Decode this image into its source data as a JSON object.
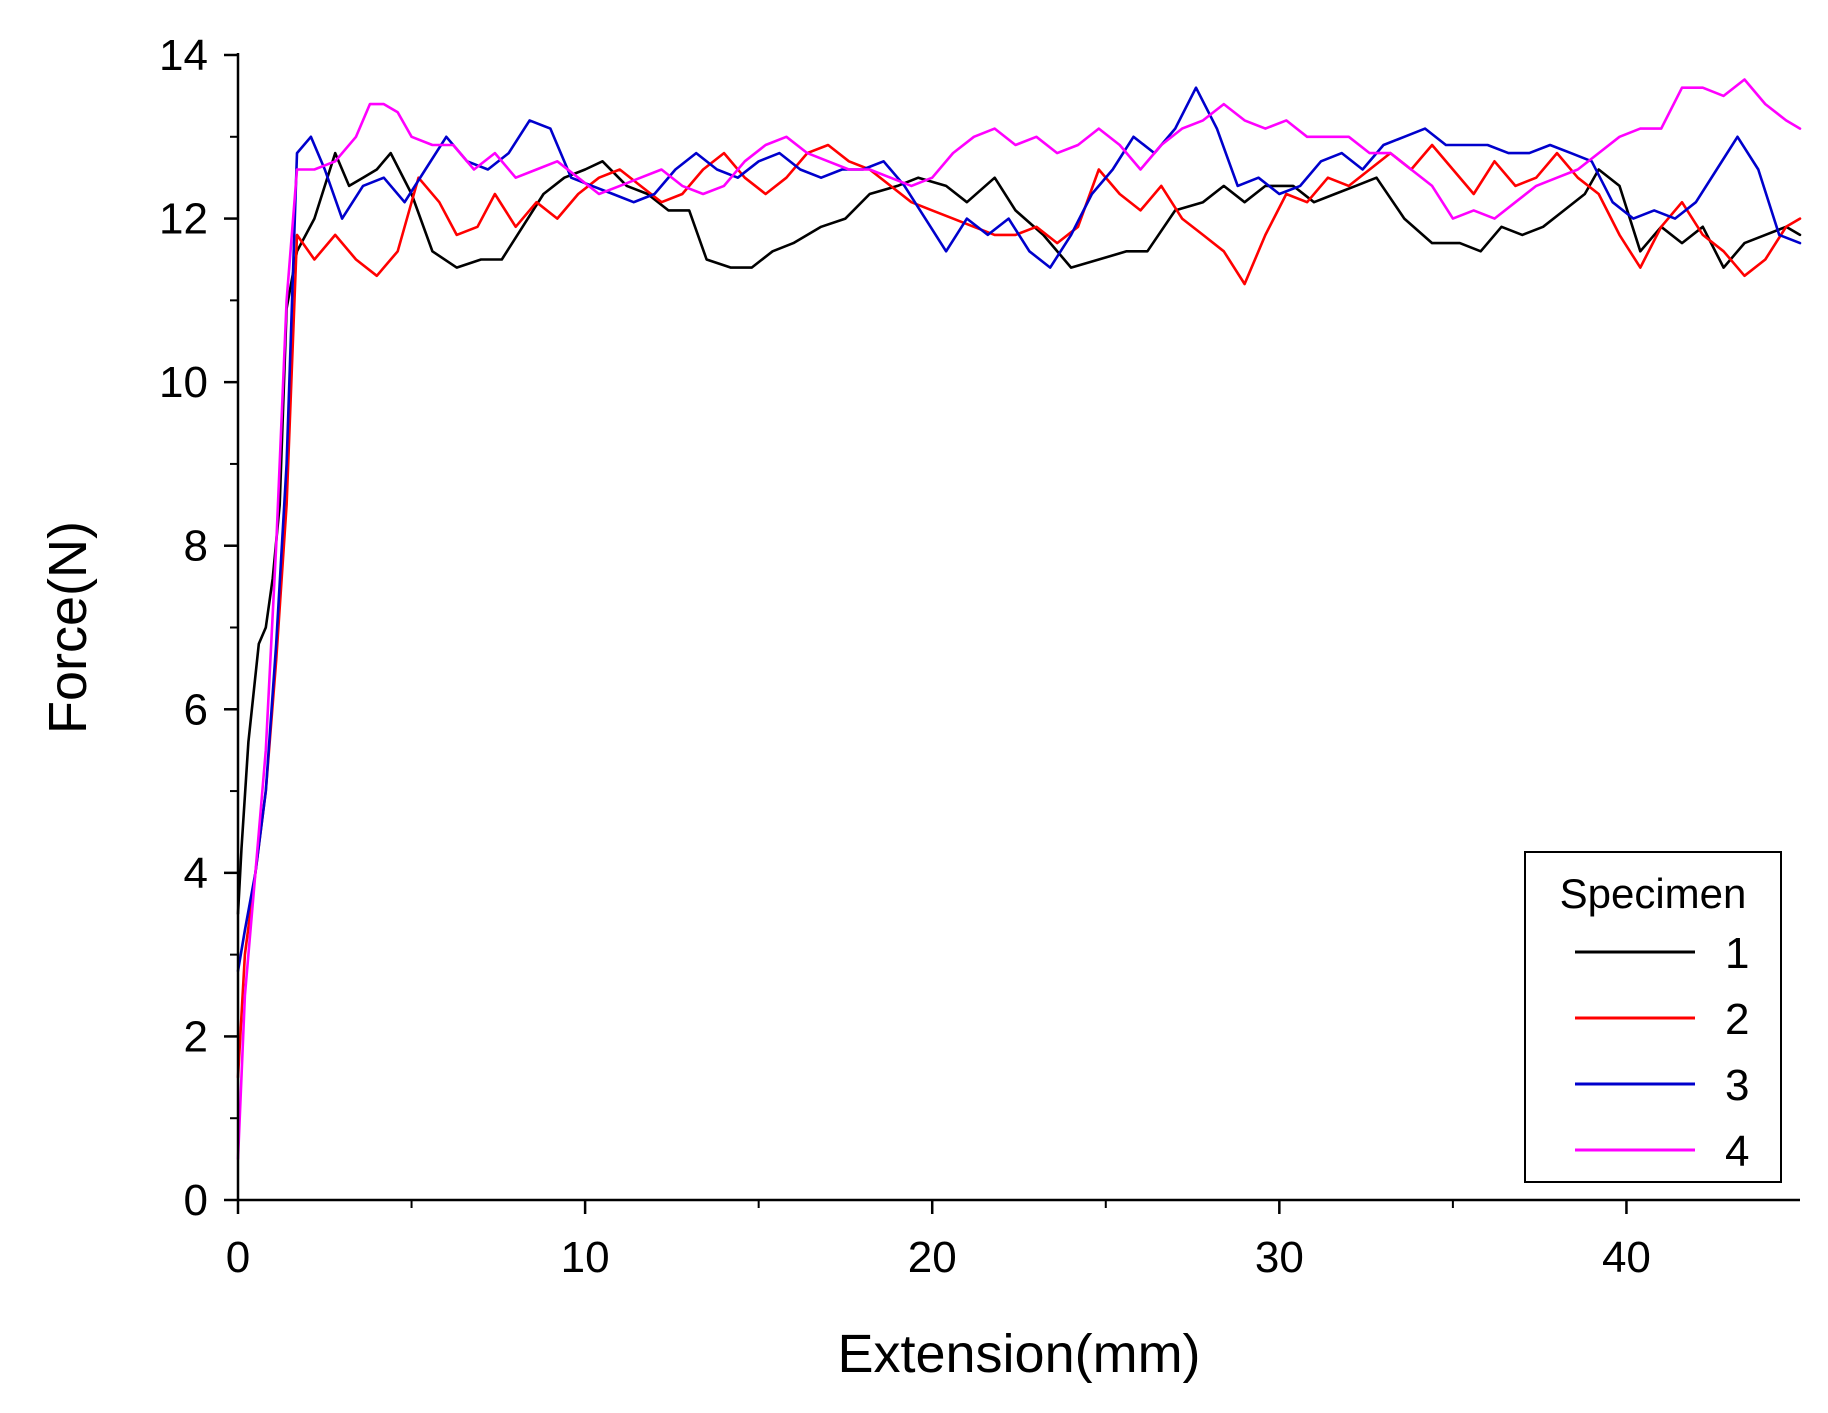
{
  "chart_data": {
    "type": "line",
    "title": "",
    "xlabel": "Extension(mm)",
    "ylabel": "Force(N)",
    "xlim": [
      0,
      45
    ],
    "ylim": [
      0,
      14
    ],
    "xticks": [
      0,
      10,
      20,
      30,
      40
    ],
    "yticks": [
      0,
      2,
      4,
      6,
      8,
      10,
      12,
      14
    ],
    "xminor_ticks": [
      5,
      15,
      25,
      35
    ],
    "grid": false,
    "legend": {
      "title": "Specimen",
      "position": "lower-right"
    },
    "series": [
      {
        "name": "1",
        "color": "#000000",
        "x": [
          0,
          0.1,
          0.3,
          0.6,
          0.8,
          1.0,
          1.2,
          1.4,
          1.7,
          2.2,
          2.8,
          3.2,
          3.6,
          4.0,
          4.4,
          5.0,
          5.6,
          6.3,
          7.0,
          7.6,
          8.2,
          8.8,
          9.4,
          10.0,
          10.5,
          11.2,
          11.8,
          12.4,
          13.0,
          13.5,
          14.2,
          14.8,
          15.4,
          16.0,
          16.8,
          17.5,
          18.2,
          19.0,
          19.6,
          20.4,
          21.0,
          21.8,
          22.4,
          23.2,
          24.0,
          24.8,
          25.6,
          26.2,
          27.0,
          27.8,
          28.4,
          29.0,
          29.6,
          30.4,
          31.0,
          31.6,
          32.2,
          32.8,
          33.6,
          34.4,
          35.2,
          35.8,
          36.4,
          37.0,
          37.6,
          38.2,
          38.8,
          39.2,
          39.8,
          40.4,
          41.0,
          41.6,
          42.2,
          42.8,
          43.4,
          44.0,
          44.6,
          45.0
        ],
        "values": [
          3.5,
          4.3,
          5.6,
          6.8,
          7.0,
          7.6,
          8.5,
          10.9,
          11.6,
          12.0,
          12.8,
          12.4,
          12.5,
          12.6,
          12.8,
          12.3,
          11.6,
          11.4,
          11.5,
          11.5,
          11.9,
          12.3,
          12.5,
          12.6,
          12.7,
          12.4,
          12.3,
          12.1,
          12.1,
          11.5,
          11.4,
          11.4,
          11.6,
          11.7,
          11.9,
          12.0,
          12.3,
          12.4,
          12.5,
          12.4,
          12.2,
          12.5,
          12.1,
          11.8,
          11.4,
          11.5,
          11.6,
          11.6,
          12.1,
          12.2,
          12.4,
          12.2,
          12.4,
          12.4,
          12.2,
          12.3,
          12.4,
          12.5,
          12.0,
          11.7,
          11.7,
          11.6,
          11.9,
          11.8,
          11.9,
          12.1,
          12.3,
          12.6,
          12.4,
          11.6,
          11.9,
          11.7,
          11.9,
          11.4,
          11.7,
          11.8,
          11.9,
          11.8
        ]
      },
      {
        "name": "2",
        "color": "#ff0000",
        "x": [
          0,
          0.2,
          0.5,
          0.8,
          1.1,
          1.4,
          1.7,
          2.2,
          2.8,
          3.4,
          4.0,
          4.6,
          5.2,
          5.8,
          6.3,
          6.9,
          7.4,
          8.0,
          8.6,
          9.2,
          9.8,
          10.4,
          11.0,
          11.6,
          12.2,
          12.8,
          13.4,
          14.0,
          14.6,
          15.2,
          15.8,
          16.4,
          17.0,
          17.6,
          18.2,
          18.8,
          19.4,
          20.0,
          20.6,
          21.2,
          21.8,
          22.4,
          23.0,
          23.6,
          24.2,
          24.8,
          25.4,
          26.0,
          26.6,
          27.2,
          27.8,
          28.4,
          29.0,
          29.6,
          30.2,
          30.8,
          31.4,
          32.0,
          32.6,
          33.2,
          33.8,
          34.4,
          35.0,
          35.6,
          36.2,
          36.8,
          37.4,
          38.0,
          38.6,
          39.2,
          39.8,
          40.4,
          41.0,
          41.6,
          42.2,
          42.8,
          43.4,
          44.0,
          44.6,
          45.0
        ],
        "values": [
          1.5,
          3.0,
          4.0,
          5.0,
          6.6,
          8.5,
          11.8,
          11.5,
          11.8,
          11.5,
          11.3,
          11.6,
          12.5,
          12.2,
          11.8,
          11.9,
          12.3,
          11.9,
          12.2,
          12.0,
          12.3,
          12.5,
          12.6,
          12.4,
          12.2,
          12.3,
          12.6,
          12.8,
          12.5,
          12.3,
          12.5,
          12.8,
          12.9,
          12.7,
          12.6,
          12.4,
          12.2,
          12.1,
          12.0,
          11.9,
          11.8,
          11.8,
          11.9,
          11.7,
          11.9,
          12.6,
          12.3,
          12.1,
          12.4,
          12.0,
          11.8,
          11.6,
          11.2,
          11.8,
          12.3,
          12.2,
          12.5,
          12.4,
          12.6,
          12.8,
          12.6,
          12.9,
          12.6,
          12.3,
          12.7,
          12.4,
          12.5,
          12.8,
          12.5,
          12.3,
          11.8,
          11.4,
          11.9,
          12.2,
          11.8,
          11.6,
          11.3,
          11.5,
          11.9,
          12.0
        ]
      },
      {
        "name": "3",
        "color": "#0000cc",
        "x": [
          0,
          0.2,
          0.5,
          0.8,
          1.1,
          1.4,
          1.7,
          2.1,
          2.5,
          3.0,
          3.6,
          4.2,
          4.8,
          5.4,
          6.0,
          6.6,
          7.2,
          7.8,
          8.4,
          9.0,
          9.6,
          10.2,
          10.8,
          11.4,
          12.0,
          12.6,
          13.2,
          13.8,
          14.4,
          15.0,
          15.6,
          16.2,
          16.8,
          17.4,
          18.0,
          18.6,
          19.2,
          19.8,
          20.4,
          21.0,
          21.6,
          22.2,
          22.8,
          23.4,
          24.0,
          24.6,
          25.2,
          25.8,
          26.4,
          27.0,
          27.6,
          28.2,
          28.8,
          29.4,
          30.0,
          30.6,
          31.2,
          31.8,
          32.4,
          33.0,
          33.6,
          34.2,
          34.8,
          35.4,
          36.0,
          36.6,
          37.2,
          37.8,
          38.4,
          39.0,
          39.6,
          40.2,
          40.8,
          41.4,
          42.0,
          42.6,
          43.2,
          43.8,
          44.4,
          45.0
        ],
        "values": [
          2.8,
          3.3,
          4.0,
          5.0,
          6.8,
          9.0,
          12.8,
          13.0,
          12.6,
          12.0,
          12.4,
          12.5,
          12.2,
          12.6,
          13.0,
          12.7,
          12.6,
          12.8,
          13.2,
          13.1,
          12.5,
          12.4,
          12.3,
          12.2,
          12.3,
          12.6,
          12.8,
          12.6,
          12.5,
          12.7,
          12.8,
          12.6,
          12.5,
          12.6,
          12.6,
          12.7,
          12.4,
          12.0,
          11.6,
          12.0,
          11.8,
          12.0,
          11.6,
          11.4,
          11.8,
          12.3,
          12.6,
          13.0,
          12.8,
          13.1,
          13.6,
          13.1,
          12.4,
          12.5,
          12.3,
          12.4,
          12.7,
          12.8,
          12.6,
          12.9,
          13.0,
          13.1,
          12.9,
          12.9,
          12.9,
          12.8,
          12.8,
          12.9,
          12.8,
          12.7,
          12.2,
          12.0,
          12.1,
          12.0,
          12.2,
          12.6,
          13.0,
          12.6,
          11.8,
          11.7
        ]
      },
      {
        "name": "4",
        "color": "#ff00ff",
        "x": [
          0,
          0.2,
          0.5,
          0.8,
          1.1,
          1.4,
          1.7,
          2.2,
          2.8,
          3.4,
          3.8,
          4.2,
          4.6,
          5.0,
          5.6,
          6.2,
          6.8,
          7.4,
          8.0,
          8.6,
          9.2,
          9.8,
          10.4,
          11.0,
          11.6,
          12.2,
          12.8,
          13.4,
          14.0,
          14.6,
          15.2,
          15.8,
          16.4,
          17.0,
          17.6,
          18.2,
          18.8,
          19.4,
          20.0,
          20.6,
          21.2,
          21.8,
          22.4,
          23.0,
          23.6,
          24.2,
          24.8,
          25.4,
          26.0,
          26.6,
          27.2,
          27.8,
          28.4,
          29.0,
          29.6,
          30.2,
          30.8,
          31.4,
          32.0,
          32.6,
          33.2,
          33.8,
          34.4,
          35.0,
          35.6,
          36.2,
          36.8,
          37.4,
          38.0,
          38.6,
          39.2,
          39.8,
          40.4,
          41.0,
          41.6,
          42.2,
          42.8,
          43.4,
          44.0,
          44.6,
          45.0
        ],
        "values": [
          0.5,
          2.5,
          4.0,
          5.5,
          8.0,
          11.0,
          12.6,
          12.6,
          12.7,
          13.0,
          13.4,
          13.4,
          13.3,
          13.0,
          12.9,
          12.9,
          12.6,
          12.8,
          12.5,
          12.6,
          12.7,
          12.5,
          12.3,
          12.4,
          12.5,
          12.6,
          12.4,
          12.3,
          12.4,
          12.7,
          12.9,
          13.0,
          12.8,
          12.7,
          12.6,
          12.6,
          12.5,
          12.4,
          12.5,
          12.8,
          13.0,
          13.1,
          12.9,
          13.0,
          12.8,
          12.9,
          13.1,
          12.9,
          12.6,
          12.9,
          13.1,
          13.2,
          13.4,
          13.2,
          13.1,
          13.2,
          13.0,
          13.0,
          13.0,
          12.8,
          12.8,
          12.6,
          12.4,
          12.0,
          12.1,
          12.0,
          12.2,
          12.4,
          12.5,
          12.6,
          12.8,
          13.0,
          13.1,
          13.1,
          13.6,
          13.6,
          13.5,
          13.7,
          13.4,
          13.2,
          13.1
        ]
      }
    ]
  }
}
